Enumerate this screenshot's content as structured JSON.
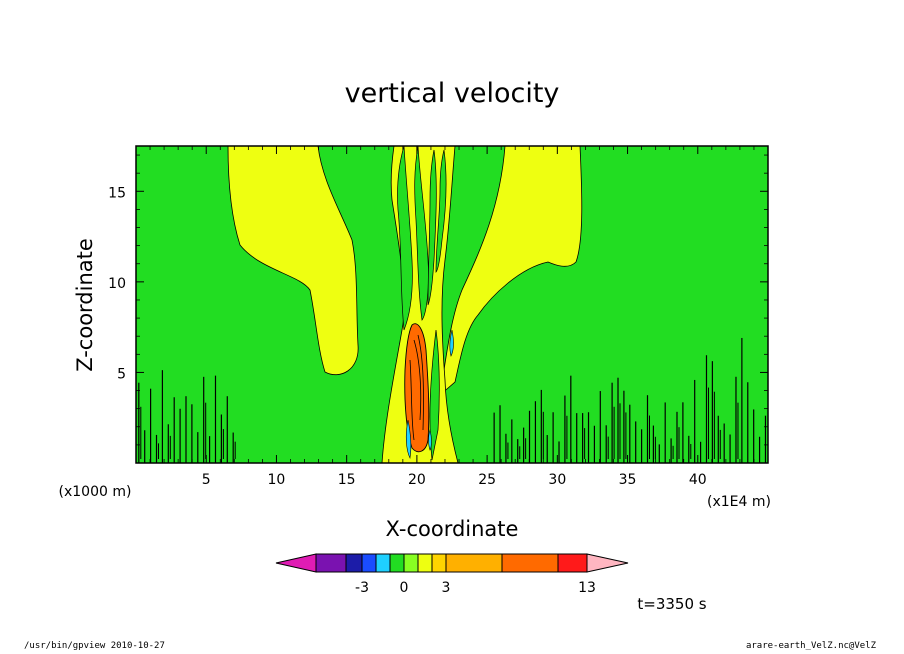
{
  "chart_data": {
    "type": "heatmap",
    "title": "vertical velocity",
    "xlabel": "X-coordinate",
    "ylabel": "Z-coordinate",
    "x_unit_label": "(x1E4 m)",
    "y_unit_label": "(x1000 m)",
    "xlim": [
      0,
      45
    ],
    "ylim": [
      0,
      17.5
    ],
    "x_ticks": [
      5,
      10,
      15,
      20,
      25,
      30,
      35,
      40
    ],
    "y_ticks": [
      5,
      10,
      15
    ],
    "colorbar": {
      "tick_labels": [
        "-3",
        "0",
        "3",
        "13"
      ],
      "colors": [
        "#e01cb4",
        "#7a12b0",
        "#1c1ca8",
        "#1a4cff",
        "#1fd0ff",
        "#22dd22",
        "#88ff22",
        "#eeff11",
        "#ffd400",
        "#ffb000",
        "#ff6a00",
        "#ff1a1a",
        "#ff7777",
        "#ffb6c1"
      ]
    },
    "time_label": "t=3350 s",
    "background_color": "#22dd22",
    "positive_color": "#eeff11",
    "strong_color": "#ff6a00",
    "negative_color": "#1fd0ff"
  },
  "footer": {
    "left": "/usr/bin/gpview   2010-10-27",
    "right": "arare-earth_VelZ.nc@VelZ"
  }
}
